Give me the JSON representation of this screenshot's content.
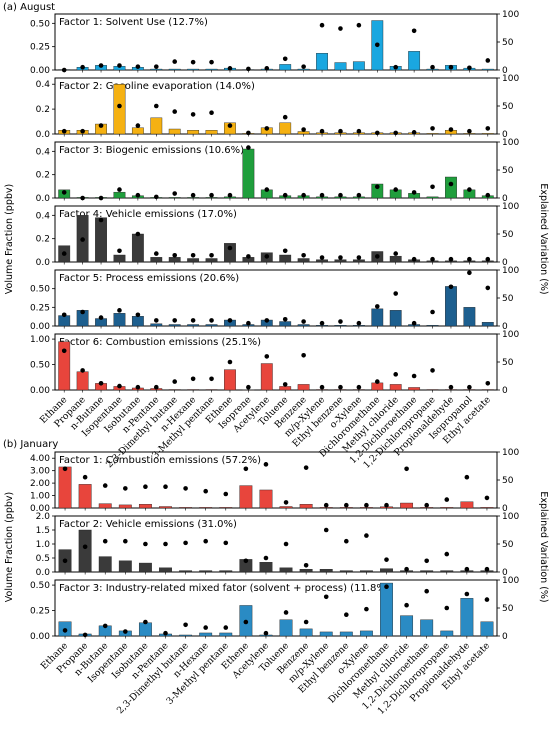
{
  "figure": {
    "ylabel_left": "Volume Fraction (ppbv)",
    "ylabel_right": "Explained Variation (%)"
  },
  "chart_data": [
    {
      "type": "bar",
      "section_label": "(a) August",
      "categories": [
        "Ethane",
        "Propane",
        "n-Butane",
        "Isopentane",
        "Isobutane",
        "n-Pentane",
        "2,3-Dimethyl butane",
        "n-Hexane",
        "3-Methyl pentane",
        "Ethene",
        "Isoprene",
        "Acetylene",
        "Toluene",
        "Benzene",
        "m/p-Xylene",
        "Ethyl benzene",
        "o-Xylene",
        "Dichloromethane",
        "Methyl chloride",
        "1,2-Dichloroethane",
        "1,2-Dichloropropane",
        "Propionaldehyde",
        "Isopropanol",
        "Ethyl acetate"
      ],
      "panels": [
        {
          "title": "Factor 1: Solvent Use (12.7%)",
          "color": "#1aa7e0",
          "ylim": [
            0,
            0.6
          ],
          "yticks": [
            "0.00",
            "0.25",
            "0.50"
          ],
          "ytick_values": [
            0,
            0.25,
            0.5
          ],
          "values": [
            0.005,
            0.03,
            0.05,
            0.04,
            0.03,
            0.01,
            0.01,
            0.01,
            0.01,
            0.02,
            0.005,
            0.01,
            0.06,
            0.01,
            0.18,
            0.08,
            0.09,
            0.53,
            0.04,
            0.2,
            0.01,
            0.05,
            0.02,
            0.01
          ],
          "explained": [
            0,
            5,
            8,
            8,
            6,
            6,
            15,
            14,
            14,
            3,
            2,
            3,
            20,
            6,
            80,
            74,
            80,
            45,
            5,
            70,
            5,
            5,
            4,
            17
          ]
        },
        {
          "title": "Factor 2: Gasoline evaporation (14.0%)",
          "color": "#f5b112",
          "ylim": [
            0,
            0.45
          ],
          "yticks": [
            "0.0",
            "0.2",
            "0.4"
          ],
          "ytick_values": [
            0,
            0.2,
            0.4
          ],
          "values": [
            0.03,
            0.03,
            0.08,
            0.4,
            0.05,
            0.13,
            0.04,
            0.03,
            0.03,
            0.09,
            0.005,
            0.05,
            0.09,
            0.02,
            0.01,
            0.01,
            0.01,
            0.01,
            0.01,
            0.01,
            0.005,
            0.03,
            0.005,
            0.005
          ],
          "explained": [
            5,
            5,
            15,
            50,
            15,
            50,
            40,
            35,
            38,
            15,
            2,
            10,
            30,
            8,
            5,
            5,
            5,
            2,
            2,
            3,
            10,
            8,
            5,
            10
          ]
        },
        {
          "title": "Factor 3: Biogenic emissions (10.6%)",
          "color": "#1f9e3c",
          "ylim": [
            0,
            0.48
          ],
          "yticks": [
            "0.0",
            "0.2",
            "0.4"
          ],
          "ytick_values": [
            0,
            0.2,
            0.4
          ],
          "values": [
            0.07,
            0.005,
            0.005,
            0.05,
            0.02,
            0.005,
            0.005,
            0.005,
            0.005,
            0.01,
            0.42,
            0.07,
            0.02,
            0.02,
            0.01,
            0.01,
            0.01,
            0.12,
            0.07,
            0.04,
            0.01,
            0.18,
            0.07,
            0.02
          ],
          "explained": [
            10,
            0,
            0,
            15,
            5,
            2,
            8,
            5,
            5,
            5,
            90,
            15,
            5,
            5,
            5,
            5,
            5,
            20,
            15,
            10,
            20,
            25,
            15,
            5
          ]
        },
        {
          "title": "Factor 4: Vehicle emissions (17.0%)",
          "color": "#3a3a3a",
          "ylim": [
            0,
            0.48
          ],
          "yticks": [
            "0.0",
            "0.2",
            "0.4"
          ],
          "ytick_values": [
            0,
            0.2,
            0.4
          ],
          "values": [
            0.14,
            0.4,
            0.38,
            0.06,
            0.24,
            0.04,
            0.04,
            0.03,
            0.03,
            0.16,
            0.04,
            0.08,
            0.06,
            0.03,
            0.02,
            0.02,
            0.02,
            0.09,
            0.05,
            0.02,
            0.01,
            0.01,
            0.01,
            0.01
          ],
          "explained": [
            15,
            40,
            75,
            20,
            50,
            15,
            12,
            12,
            12,
            25,
            10,
            10,
            20,
            12,
            8,
            8,
            8,
            10,
            15,
            5,
            5,
            5,
            5,
            5
          ]
        },
        {
          "title": "Factor 5: Process emissions (20.6%)",
          "color": "#1d5f8f",
          "ylim": [
            0,
            0.75
          ],
          "yticks": [
            "0.00",
            "0.25",
            "0.50"
          ],
          "ytick_values": [
            0,
            0.25,
            0.5
          ],
          "values": [
            0.14,
            0.21,
            0.1,
            0.17,
            0.13,
            0.03,
            0.02,
            0.02,
            0.02,
            0.08,
            0.02,
            0.08,
            0.06,
            0.02,
            0.01,
            0.01,
            0.01,
            0.23,
            0.21,
            0.02,
            0.01,
            0.53,
            0.25,
            0.05
          ],
          "explained": [
            20,
            25,
            15,
            28,
            20,
            10,
            10,
            10,
            10,
            10,
            5,
            10,
            12,
            8,
            5,
            8,
            5,
            35,
            58,
            5,
            25,
            70,
            95,
            68
          ]
        },
        {
          "title": "Factor 6: Combustion emissions (25.1%)",
          "color": "#e8453c",
          "ylim": [
            0,
            1.1
          ],
          "yticks": [
            "0.00",
            "0.50",
            "1.00"
          ],
          "ytick_values": [
            0,
            0.5,
            1.0
          ],
          "values": [
            0.95,
            0.36,
            0.13,
            0.07,
            0.04,
            0.03,
            0.01,
            0.01,
            0.01,
            0.4,
            0.005,
            0.52,
            0.07,
            0.11,
            0.01,
            0.01,
            0.01,
            0.14,
            0.11,
            0.05,
            0.01,
            0.01,
            0.01,
            0.01
          ],
          "explained": [
            70,
            35,
            12,
            7,
            5,
            5,
            15,
            20,
            20,
            50,
            5,
            60,
            10,
            62,
            5,
            5,
            5,
            15,
            28,
            25,
            35,
            5,
            5,
            12
          ]
        }
      ]
    },
    {
      "type": "bar",
      "section_label": "(b) January",
      "categories": [
        "Ethane",
        "Propane",
        "n-Butane",
        "Isopentane",
        "Isobutane",
        "n-Pentane",
        "2,3-Dimethyl butane",
        "n-Hexane",
        "3-Methyl pentane",
        "Ethene",
        "Acetylene",
        "Toluene",
        "Benzene",
        "m/p-Xylene",
        "Ethyl benzene",
        "o-Xylene",
        "Dichloromethane",
        "Methyl chloride",
        "1,2-Dichloroethane",
        "1,2-Dichloropropane",
        "Propionaldehyde",
        "Ethyl acetate"
      ],
      "panels": [
        {
          "title": "Factor 1: Combustion emissions (57.2%)",
          "color": "#e8453c",
          "ylim": [
            0,
            4.5
          ],
          "yticks": [
            "0.00",
            "1.00",
            "2.00",
            "3.00",
            "4.00"
          ],
          "ytick_values": [
            0,
            1,
            2,
            3,
            4
          ],
          "values": [
            3.3,
            1.9,
            0.35,
            0.25,
            0.3,
            0.12,
            0.05,
            0.05,
            0.05,
            1.8,
            1.45,
            0.12,
            0.3,
            0.05,
            0.05,
            0.05,
            0.1,
            0.4,
            0.05,
            0.05,
            0.5,
            0.05
          ],
          "explained": [
            70,
            55,
            40,
            35,
            38,
            38,
            35,
            30,
            25,
            70,
            78,
            10,
            72,
            5,
            5,
            5,
            5,
            70,
            5,
            15,
            55,
            18
          ]
        },
        {
          "title": "Factor 2: Vehicle emissions (31.0%)",
          "color": "#3a3a3a",
          "ylim": [
            0,
            2.0
          ],
          "yticks": [
            "0.0",
            "0.5",
            "1.0",
            "1.5",
            "2.0"
          ],
          "ytick_values": [
            0,
            0.5,
            1.0,
            1.5,
            2.0
          ],
          "values": [
            0.8,
            1.5,
            0.55,
            0.4,
            0.32,
            0.15,
            0.05,
            0.05,
            0.05,
            0.45,
            0.35,
            0.15,
            0.1,
            0.1,
            0.05,
            0.05,
            0.12,
            0.05,
            0.05,
            0.05,
            0.05,
            0.05
          ],
          "explained": [
            20,
            45,
            55,
            55,
            50,
            50,
            52,
            55,
            52,
            20,
            25,
            50,
            12,
            75,
            55,
            65,
            22,
            5,
            20,
            32,
            5,
            5
          ]
        },
        {
          "title": "Factor 3: Industry-related mixed fator (solvent + process) (11.8%)",
          "color": "#2a8bc4",
          "ylim": [
            0,
            0.55
          ],
          "yticks": [
            "0.00",
            "0.25",
            "0.50"
          ],
          "ytick_values": [
            0,
            0.25,
            0.5
          ],
          "values": [
            0.14,
            0.02,
            0.1,
            0.05,
            0.13,
            0.02,
            0.01,
            0.03,
            0.03,
            0.3,
            0.01,
            0.16,
            0.07,
            0.04,
            0.04,
            0.05,
            0.52,
            0.2,
            0.16,
            0.05,
            0.37,
            0.14
          ],
          "explained": [
            10,
            2,
            18,
            8,
            25,
            5,
            20,
            15,
            15,
            25,
            5,
            42,
            25,
            70,
            38,
            48,
            88,
            55,
            80,
            50,
            75,
            65
          ]
        }
      ]
    }
  ]
}
